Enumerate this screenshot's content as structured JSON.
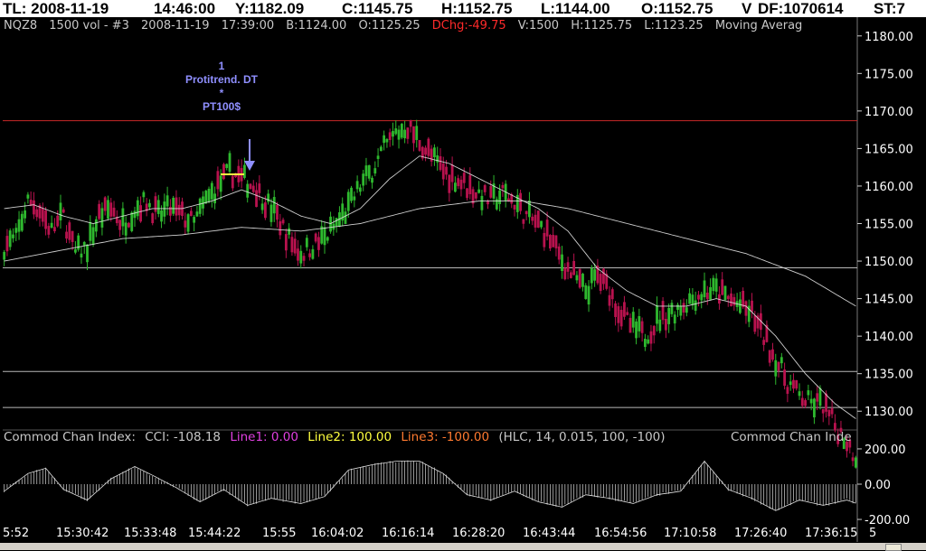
{
  "top_bar": {
    "tl": "TL: 2008-11-19",
    "time": "14:46:00",
    "y": "Y:1182.09",
    "c": "C:1145.75",
    "h": "H:1152.75",
    "l": "L:1144.00",
    "o": "O:1152.75",
    "v": "V",
    "df": "DF:1070614",
    "st": "ST:7"
  },
  "info_bar": {
    "symbol": "NQZ8",
    "bars": "1500 vol - #3",
    "date": "2008-11-19",
    "time": "17:39:00",
    "bid": "B:1124.00",
    "open": "O:1125.25",
    "dchg": "DChg:-49.75",
    "vol": "V:1500",
    "high": "H:1125.75",
    "low": "L:1123.25",
    "study": "Moving Averag"
  },
  "marker": {
    "line1": "1",
    "line2": "Protitrend. DT",
    "line3": "*",
    "line4": "PT100$"
  },
  "cci_legend": {
    "title": "Commod Chan Index:",
    "cci": "CCI: -108.18",
    "line1": "Line1: 0.00",
    "line2": "Line2: 100.00",
    "line3": "Line3: -100.00",
    "params": "(HLC, 14, 0.015, 100, -100)",
    "title2": "Commod Chan Inde"
  },
  "colors": {
    "up": "#2eb82e",
    "down": "#b8124e",
    "ma": "#e6e6e6",
    "red_line": "#c82828",
    "hline": "#b8b8b8"
  },
  "chart_data": {
    "type": "candlestick",
    "price_axis": {
      "ylim": [
        1127.5,
        1182.5
      ],
      "ticks": [
        1130.0,
        1135.0,
        1140.0,
        1145.0,
        1150.0,
        1155.0,
        1160.0,
        1165.0,
        1170.0,
        1175.0,
        1180.0
      ],
      "tick_labels": [
        "1130.00",
        "1135.00",
        "1140.00",
        "1145.00",
        "1150.00",
        "1155.00",
        "1160.00",
        "1165.00",
        "1170.00",
        "1175.00",
        "1180.00"
      ]
    },
    "horizontal_lines": [
      {
        "value": 1168.7,
        "color": "red"
      },
      {
        "value": 1149.1,
        "color": "gray"
      },
      {
        "value": 1135.3,
        "color": "gray"
      },
      {
        "value": 1130.5,
        "color": "gray"
      }
    ],
    "x_tick_labels": [
      "5:52",
      "15:30:42",
      "15:33:48",
      "15:44:22",
      "15:55",
      "16:04:02",
      "16:16:14",
      "16:28:20",
      "16:43:44",
      "16:54:56",
      "17:10:58",
      "17:26:40",
      "17:36:15"
    ],
    "x_tick_tail": "5",
    "price_path": [
      [
        0,
        1152
      ],
      [
        4,
        1153
      ],
      [
        8,
        1158
      ],
      [
        12,
        1157
      ],
      [
        16,
        1154
      ],
      [
        20,
        1156
      ],
      [
        24,
        1151
      ],
      [
        28,
        1152
      ],
      [
        32,
        1156
      ],
      [
        36,
        1157
      ],
      [
        40,
        1155
      ],
      [
        44,
        1157
      ],
      [
        48,
        1158
      ],
      [
        52,
        1156
      ],
      [
        56,
        1157
      ],
      [
        60,
        1156
      ],
      [
        64,
        1155
      ],
      [
        68,
        1158
      ],
      [
        72,
        1160
      ],
      [
        76,
        1162
      ],
      [
        80,
        1161
      ],
      [
        84,
        1160
      ],
      [
        88,
        1158
      ],
      [
        92,
        1156
      ],
      [
        96,
        1153
      ],
      [
        100,
        1151
      ],
      [
        104,
        1152
      ],
      [
        108,
        1153
      ],
      [
        112,
        1155
      ],
      [
        116,
        1157
      ],
      [
        120,
        1160
      ],
      [
        124,
        1162
      ],
      [
        128,
        1165
      ],
      [
        132,
        1167
      ],
      [
        136,
        1168
      ],
      [
        140,
        1166
      ],
      [
        144,
        1164
      ],
      [
        148,
        1162
      ],
      [
        152,
        1161
      ],
      [
        156,
        1160
      ],
      [
        160,
        1159
      ],
      [
        164,
        1158
      ],
      [
        168,
        1159
      ],
      [
        172,
        1158
      ],
      [
        176,
        1156
      ],
      [
        180,
        1155
      ],
      [
        184,
        1153
      ],
      [
        188,
        1150
      ],
      [
        192,
        1148
      ],
      [
        196,
        1146
      ],
      [
        200,
        1148
      ],
      [
        204,
        1146
      ],
      [
        208,
        1143
      ],
      [
        212,
        1141
      ],
      [
        216,
        1140
      ],
      [
        220,
        1142
      ],
      [
        224,
        1143
      ],
      [
        228,
        1144
      ],
      [
        232,
        1145
      ],
      [
        236,
        1146
      ],
      [
        240,
        1146
      ],
      [
        244,
        1145
      ],
      [
        248,
        1144
      ],
      [
        252,
        1143
      ],
      [
        256,
        1140
      ],
      [
        260,
        1137
      ],
      [
        264,
        1134
      ],
      [
        268,
        1132
      ],
      [
        272,
        1131
      ],
      [
        276,
        1131
      ],
      [
        280,
        1128
      ],
      [
        284,
        1126
      ],
      [
        287,
        1124
      ]
    ],
    "ma_fast_path": [
      [
        0,
        1157
      ],
      [
        10,
        1157.5
      ],
      [
        20,
        1156
      ],
      [
        30,
        1155
      ],
      [
        40,
        1156
      ],
      [
        50,
        1157
      ],
      [
        60,
        1157
      ],
      [
        70,
        1158
      ],
      [
        80,
        1159.5
      ],
      [
        90,
        1158
      ],
      [
        100,
        1156
      ],
      [
        110,
        1155
      ],
      [
        120,
        1157
      ],
      [
        130,
        1161
      ],
      [
        140,
        1164
      ],
      [
        150,
        1163
      ],
      [
        160,
        1161
      ],
      [
        170,
        1159
      ],
      [
        180,
        1157
      ],
      [
        190,
        1154
      ],
      [
        200,
        1149
      ],
      [
        210,
        1146
      ],
      [
        220,
        1144
      ],
      [
        230,
        1144
      ],
      [
        240,
        1145
      ],
      [
        250,
        1144
      ],
      [
        260,
        1140
      ],
      [
        270,
        1135
      ],
      [
        280,
        1131
      ],
      [
        287,
        1129
      ]
    ],
    "ma_slow_path": [
      [
        0,
        1150
      ],
      [
        20,
        1151.5
      ],
      [
        40,
        1153
      ],
      [
        60,
        1153.5
      ],
      [
        80,
        1154.5
      ],
      [
        100,
        1154
      ],
      [
        120,
        1155
      ],
      [
        140,
        1157
      ],
      [
        160,
        1158
      ],
      [
        175,
        1158
      ],
      [
        190,
        1157
      ],
      [
        210,
        1155
      ],
      [
        230,
        1153
      ],
      [
        250,
        1151
      ],
      [
        270,
        1148
      ],
      [
        287,
        1144
      ]
    ],
    "cci_axis": {
      "ylim": [
        -210,
        210
      ],
      "ticks": [
        200,
        0,
        -200
      ],
      "tick_labels": [
        "200.00",
        "0.00",
        "-200.00"
      ]
    },
    "cci_path": [
      [
        0,
        -40
      ],
      [
        8,
        60
      ],
      [
        14,
        90
      ],
      [
        20,
        -30
      ],
      [
        28,
        -90
      ],
      [
        36,
        30
      ],
      [
        44,
        100
      ],
      [
        50,
        50
      ],
      [
        58,
        -20
      ],
      [
        66,
        -100
      ],
      [
        74,
        -30
      ],
      [
        82,
        -120
      ],
      [
        90,
        -80
      ],
      [
        100,
        -110
      ],
      [
        108,
        -70
      ],
      [
        116,
        80
      ],
      [
        124,
        110
      ],
      [
        132,
        130
      ],
      [
        140,
        130
      ],
      [
        148,
        60
      ],
      [
        156,
        -60
      ],
      [
        164,
        -90
      ],
      [
        172,
        -40
      ],
      [
        180,
        -100
      ],
      [
        188,
        -130
      ],
      [
        196,
        -60
      ],
      [
        204,
        -80
      ],
      [
        212,
        -110
      ],
      [
        220,
        -60
      ],
      [
        228,
        -40
      ],
      [
        236,
        130
      ],
      [
        244,
        -30
      ],
      [
        252,
        -80
      ],
      [
        260,
        -150
      ],
      [
        268,
        -90
      ],
      [
        276,
        -120
      ],
      [
        284,
        -90
      ],
      [
        287,
        -108
      ]
    ],
    "grid": false
  }
}
